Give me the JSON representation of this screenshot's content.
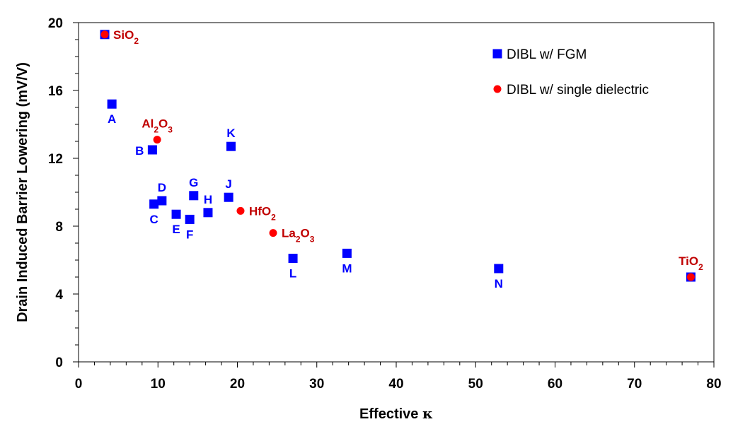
{
  "chart_data": {
    "type": "scatter",
    "xlabel_text": "Effective ",
    "xlabel_symbol": "κ",
    "ylabel": "Drain Induced Barrier Lowering (mV/V)",
    "xlim": [
      0,
      80
    ],
    "ylim": [
      0,
      20
    ],
    "x_ticks": [
      "0",
      "10",
      "20",
      "30",
      "40",
      "50",
      "60",
      "70",
      "80"
    ],
    "y_ticks": [
      "0",
      "4",
      "8",
      "12",
      "16",
      "20"
    ],
    "grid": false,
    "legend_position": "top-right",
    "series": [
      {
        "name": "DIBL w/ FGM",
        "marker": "square",
        "color": "#0000ff",
        "points": [
          {
            "label": "A",
            "x": 4.2,
            "y": 15.2,
            "pos": "below"
          },
          {
            "label": "B",
            "x": 9.3,
            "y": 12.5,
            "pos": "left"
          },
          {
            "label": "C",
            "x": 9.5,
            "y": 9.3,
            "pos": "below"
          },
          {
            "label": "D",
            "x": 10.5,
            "y": 9.5,
            "pos": "above"
          },
          {
            "label": "E",
            "x": 12.3,
            "y": 8.7,
            "pos": "below"
          },
          {
            "label": "F",
            "x": 14.0,
            "y": 8.4,
            "pos": "below"
          },
          {
            "label": "G",
            "x": 14.5,
            "y": 9.8,
            "pos": "above"
          },
          {
            "label": "H",
            "x": 16.3,
            "y": 8.8,
            "pos": "above"
          },
          {
            "label": "J",
            "x": 18.9,
            "y": 9.7,
            "pos": "above"
          },
          {
            "label": "K",
            "x": 19.2,
            "y": 12.7,
            "pos": "above"
          },
          {
            "label": "L",
            "x": 27.0,
            "y": 6.1,
            "pos": "below"
          },
          {
            "label": "M",
            "x": 33.8,
            "y": 6.4,
            "pos": "below"
          },
          {
            "label": "N",
            "x": 52.9,
            "y": 5.5,
            "pos": "below"
          },
          {
            "label": "",
            "x": 3.3,
            "y": 19.3,
            "pos": "none"
          },
          {
            "label": "",
            "x": 77.1,
            "y": 5.0,
            "pos": "none"
          }
        ]
      },
      {
        "name": "DIBL w/ single dielectric",
        "marker": "circle",
        "color": "#ff0000",
        "points": [
          {
            "base": "SiO",
            "sub": "2",
            "x": 3.3,
            "y": 19.3,
            "pos": "right"
          },
          {
            "base": "Al",
            "sub": "2",
            "tail": "O",
            "sub2": "3",
            "x": 9.9,
            "y": 13.1,
            "pos": "above"
          },
          {
            "base": "HfO",
            "sub": "2",
            "x": 20.4,
            "y": 8.9,
            "pos": "right"
          },
          {
            "base": "La",
            "sub": "2",
            "tail": "O",
            "sub2": "3",
            "x": 24.5,
            "y": 7.6,
            "pos": "right"
          },
          {
            "base": "TiO",
            "sub": "2",
            "x": 77.1,
            "y": 5.0,
            "pos": "above"
          }
        ]
      }
    ]
  }
}
